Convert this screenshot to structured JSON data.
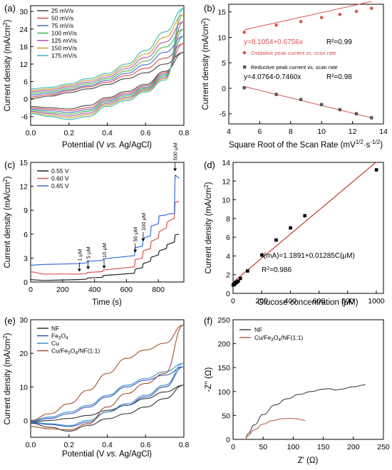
{
  "chart_data": [
    {
      "panel": "(a)",
      "type": "line",
      "xlabel": "Potential (V vs. Ag/AgCl)",
      "ylabel": "Current density (mA/cm²)",
      "xlim": [
        0.0,
        0.8
      ],
      "ylim": [
        -9,
        32
      ],
      "xticks": [
        "0.0",
        "0.2",
        "0.4",
        "0.6",
        "0.8"
      ],
      "yticks": [
        "-6",
        "0",
        "6",
        "12",
        "18",
        "24",
        "30"
      ],
      "legend_position": "top-left",
      "series": [
        {
          "name": "25 mV/s",
          "color": "#444444",
          "upper": [
            0.2,
            1.0,
            2.2,
            3.5,
            5.0,
            7.0,
            9.0,
            12.0,
            16.0
          ],
          "lower": [
            -2.5,
            -3.0,
            -3.4,
            -2.2,
            0.5,
            2.6,
            5.0,
            9.5,
            16.0
          ]
        },
        {
          "name": "50 mV/s",
          "color": "#e04848",
          "upper": [
            0.8,
            1.5,
            2.8,
            4.2,
            5.8,
            8.0,
            10.5,
            14.0,
            19.0
          ],
          "lower": [
            -3.0,
            -3.5,
            -4.0,
            -3.0,
            0.0,
            2.0,
            4.5,
            9.0,
            19.0
          ]
        },
        {
          "name": "75 mV/s",
          "color": "#4a6fd6",
          "upper": [
            1.4,
            2.0,
            3.2,
            4.6,
            6.4,
            8.8,
            11.8,
            16.0,
            21.5
          ],
          "lower": [
            -3.4,
            -4.0,
            -4.6,
            -3.6,
            -0.5,
            1.5,
            4.0,
            8.5,
            21.5
          ]
        },
        {
          "name": "100 mV/s",
          "color": "#3fbf3f",
          "upper": [
            2.0,
            2.5,
            3.7,
            5.2,
            7.0,
            9.6,
            13.0,
            17.8,
            24.0
          ],
          "lower": [
            -3.8,
            -4.5,
            -5.2,
            -4.2,
            -1.0,
            1.0,
            3.6,
            8.0,
            24.0
          ]
        },
        {
          "name": "125 mV/s",
          "color": "#b64fb6",
          "upper": [
            2.5,
            3.0,
            4.2,
            5.8,
            7.6,
            10.4,
            14.2,
            19.5,
            26.5
          ],
          "lower": [
            -4.2,
            -5.0,
            -5.8,
            -4.8,
            -1.5,
            0.5,
            3.2,
            7.5,
            26.5
          ]
        },
        {
          "name": "150 mV/s",
          "color": "#c8a020",
          "upper": [
            3.0,
            3.5,
            4.7,
            6.4,
            8.2,
            11.2,
            15.4,
            21.2,
            29.0
          ],
          "lower": [
            -4.6,
            -5.5,
            -6.4,
            -5.4,
            -2.0,
            0.0,
            2.8,
            7.0,
            29.0
          ]
        },
        {
          "name": "175 mV/s",
          "color": "#35b8b8",
          "upper": [
            3.5,
            4.0,
            5.2,
            7.0,
            8.8,
            12.0,
            16.6,
            23.0,
            31.0
          ],
          "lower": [
            -5.0,
            -6.0,
            -7.0,
            -6.0,
            -2.5,
            -0.5,
            2.4,
            6.5,
            31.0
          ]
        }
      ],
      "x": [
        0.0,
        0.1,
        0.2,
        0.3,
        0.4,
        0.5,
        0.6,
        0.7,
        0.8
      ]
    },
    {
      "panel": "(b)",
      "type": "scatter",
      "xlabel": "Square Root of the Scan Rate",
      "xunit": "(mV",
      "xunit_exp1": "1/2",
      "xunit_mid": "·s",
      "xunit_exp2": "-1/2",
      "xunit_end": ")",
      "ylabel": "Current density (mA/cm²)",
      "xlim": [
        4,
        14
      ],
      "ylim": [
        -7,
        16.5
      ],
      "xticks": [
        "4",
        "6",
        "8",
        "10",
        "12",
        "14"
      ],
      "yticks": [
        "-5",
        "0",
        "5",
        "10",
        "15"
      ],
      "series": [
        {
          "name": "Oxidative peak current vs. scan rate",
          "color": "#d9534f",
          "x": [
            5.0,
            7.07,
            8.66,
            10.0,
            11.18,
            12.25,
            13.23
          ],
          "y": [
            11.0,
            12.4,
            13.1,
            13.9,
            14.5,
            15.1,
            15.7
          ]
        },
        {
          "name": "Reductive peak current vs. scan rate",
          "color": "#555555",
          "x": [
            5.0,
            7.07,
            8.66,
            10.0,
            11.18,
            12.25,
            13.23
          ],
          "y": [
            0.1,
            -1.2,
            -2.2,
            -3.2,
            -4.2,
            -5.0,
            -5.8
          ]
        }
      ],
      "fit_ox": {
        "equation": "y=8.1054+0.6756x",
        "r2": "R²=0.99",
        "intercept": 8.1054,
        "slope": 0.6756
      },
      "fit_red": {
        "equation": "y=4.0764-0.7460x",
        "r2": "R²=0.98",
        "intercept": 4.0764,
        "slope": -0.746
      }
    },
    {
      "panel": "(c)",
      "type": "line",
      "xlabel": "Time (s)",
      "ylabel": "Current density (mA/cm²)",
      "xlim": [
        0,
        960
      ],
      "ylim": [
        0,
        15
      ],
      "xticks": [
        "0",
        "200",
        "400",
        "600",
        "800"
      ],
      "yticks": [
        "0",
        "3",
        "6",
        "9",
        "12",
        "15"
      ],
      "legend_position": "top-left",
      "series": [
        {
          "name": "0.55 V",
          "color": "#222222",
          "x": [
            0,
            80,
            300,
            350,
            355,
            450,
            455,
            650,
            655,
            700,
            705,
            750,
            755,
            800,
            805,
            850,
            855,
            900,
            905,
            930
          ],
          "y": [
            0.3,
            0.2,
            0.3,
            0.35,
            0.5,
            0.6,
            0.8,
            1.1,
            1.6,
            1.8,
            2.3,
            2.6,
            3.1,
            3.4,
            3.9,
            4.2,
            4.7,
            5.0,
            5.9,
            6.0
          ]
        },
        {
          "name": "0.60 V",
          "color": "#d9534f",
          "x": [
            0,
            80,
            300,
            350,
            355,
            450,
            455,
            650,
            655,
            700,
            705,
            750,
            755,
            800,
            805,
            850,
            855,
            900,
            905,
            930
          ],
          "y": [
            1.3,
            1.0,
            1.0,
            1.05,
            1.2,
            1.3,
            1.5,
            1.9,
            2.8,
            3.0,
            3.9,
            4.2,
            5.1,
            5.5,
            6.3,
            6.8,
            7.5,
            8.0,
            10.0,
            10.1
          ]
        },
        {
          "name": "0.65 V",
          "color": "#3a6fd8",
          "x": [
            0,
            80,
            300,
            350,
            355,
            450,
            455,
            650,
            655,
            700,
            705,
            750,
            755,
            800,
            805,
            850,
            855,
            900,
            905,
            930
          ],
          "y": [
            2.1,
            2.2,
            2.3,
            2.4,
            2.6,
            2.7,
            2.9,
            3.3,
            4.3,
            4.5,
            5.5,
            5.8,
            7.0,
            7.3,
            8.3,
            8.4,
            8.5,
            8.6,
            13.4,
            13.0
          ]
        }
      ],
      "annotations": [
        {
          "text": "1 μM",
          "x": 305,
          "y": 1.2
        },
        {
          "text": "5 μM",
          "x": 360,
          "y": 1.5
        },
        {
          "text": "10 μM",
          "x": 460,
          "y": 1.6
        },
        {
          "text": "50 μM",
          "x": 655,
          "y": 3.6
        },
        {
          "text": "100 μM",
          "x": 705,
          "y": 5.0
        },
        {
          "text": "500 μM",
          "x": 905,
          "y": 13.8
        }
      ]
    },
    {
      "panel": "(d)",
      "type": "scatter",
      "xlabel": "Glucose concentration (μM)",
      "ylabel": "Current density (mA/cm²)",
      "xlim": [
        0,
        1050
      ],
      "ylim": [
        0,
        14
      ],
      "xticks": [
        "0",
        "200",
        "400",
        "600",
        "800",
        "1000"
      ],
      "yticks": [
        "0",
        "2",
        "4",
        "6",
        "8",
        "10",
        "12",
        "14"
      ],
      "series": [
        {
          "name": "data",
          "color": "#000000",
          "x": [
            1,
            6,
            11,
            16,
            21,
            26,
            36,
            51,
            101,
            201,
            301,
            401,
            501,
            1001
          ],
          "y": [
            0.9,
            0.95,
            1.0,
            1.1,
            1.15,
            1.2,
            1.3,
            1.6,
            2.4,
            4.1,
            5.7,
            7.0,
            8.3,
            13.2
          ]
        }
      ],
      "fit": {
        "intercept": 1.1891,
        "slope": 0.01285,
        "color": "#c0392b"
      },
      "equation": "I(mA)=1.1891+0.01285C(μM)",
      "r2": "R²=0.986"
    },
    {
      "panel": "(e)",
      "type": "line",
      "xlabel": "Potential (V vs. Ag/AgCl)",
      "ylabel": "Current density (mA/cm²)",
      "xlim": [
        0.0,
        0.8
      ],
      "ylim": [
        -5,
        30
      ],
      "xticks": [
        "0.0",
        "0.2",
        "0.4",
        "0.6",
        "0.8"
      ],
      "yticks": [
        "0",
        "10",
        "20",
        "30"
      ],
      "legend_position": "top-left",
      "series": [
        {
          "name": "NF",
          "color": "#333333",
          "upper": [
            -0.5,
            0.0,
            0.6,
            1.5,
            3.0,
            4.5,
            6.5,
            8.5,
            10.5
          ],
          "lower": [
            -0.8,
            -2.0,
            -3.2,
            -1.5,
            0.5,
            2.0,
            4.0,
            6.5,
            10.5
          ]
        },
        {
          "name": "Fe3O4",
          "color": "#3050c0",
          "upper": [
            -0.3,
            0.6,
            2.0,
            4.0,
            7.0,
            10.0,
            12.0,
            13.5,
            16.0
          ],
          "lower": [
            -0.6,
            -1.2,
            -1.8,
            -0.5,
            2.5,
            4.5,
            7.0,
            10.0,
            16.0
          ]
        },
        {
          "name": "Cu",
          "color": "#3a8fbf",
          "upper": [
            0.0,
            1.0,
            2.5,
            4.5,
            7.5,
            10.5,
            12.5,
            14.5,
            17.0
          ],
          "lower": [
            -0.5,
            -1.0,
            -1.5,
            0.0,
            2.5,
            5.0,
            7.5,
            10.5,
            17.0
          ]
        },
        {
          "name": "Cu/Fe3O4/NF(1:1)",
          "color": "#a0522d",
          "upper": [
            0.0,
            2.0,
            5.0,
            9.0,
            14.0,
            18.5,
            21.0,
            23.0,
            28.5
          ],
          "lower": [
            -1.8,
            -2.5,
            -2.8,
            -1.0,
            4.0,
            8.0,
            11.0,
            14.0,
            28.5
          ]
        }
      ],
      "x": [
        0.0,
        0.1,
        0.2,
        0.3,
        0.4,
        0.5,
        0.6,
        0.7,
        0.8
      ]
    },
    {
      "panel": "(f)",
      "type": "line",
      "xlabel": "Z' (Ω)",
      "ylabel": "-Z'' (Ω)",
      "xlim": [
        0,
        250
      ],
      "ylim": [
        0,
        250
      ],
      "xticks": [
        "0",
        "50",
        "100",
        "150",
        "200",
        "250"
      ],
      "yticks": [
        "0",
        "50",
        "100",
        "150",
        "200",
        "250"
      ],
      "legend_position": "top-left",
      "series": [
        {
          "name": "NF",
          "color": "#444444",
          "x": [
            20,
            25,
            35,
            50,
            70,
            90,
            110,
            130,
            150,
            160,
            170,
            180,
            200,
            220
          ],
          "y": [
            0,
            12,
            30,
            52,
            72,
            85,
            94,
            100,
            105,
            106,
            103,
            105,
            110,
            114
          ]
        },
        {
          "name": "Cu/Fe3O4/NF(1:1)",
          "color": "#c0604a",
          "x": [
            20,
            25,
            35,
            50,
            65,
            80,
            95,
            105,
            115,
            120
          ],
          "y": [
            0,
            8,
            20,
            32,
            39,
            43,
            44,
            43,
            41,
            39
          ]
        }
      ]
    }
  ],
  "legend_a_labels": [
    "25 mV/s",
    "50 mV/s",
    "75 mV/s",
    "100 mV/s",
    "125 mV/s",
    "150 mV/s",
    "175 mV/s"
  ],
  "legend_c_labels": [
    "0.55 V",
    "0.60 V",
    "0.65 V"
  ],
  "legend_e_labels": [
    "NF",
    "Fe",
    "3",
    "O",
    "4",
    "Cu",
    "Cu/Fe",
    "3",
    "O",
    "4",
    "/NF(1:1)"
  ],
  "legend_f_labels": [
    "NF",
    "Cu/Fe",
    "3",
    "O",
    "4",
    "/NF(1:1)"
  ],
  "panel_labels": [
    "(a)",
    "(b)",
    "(c)",
    "(d)",
    "(e)",
    "(f)"
  ]
}
